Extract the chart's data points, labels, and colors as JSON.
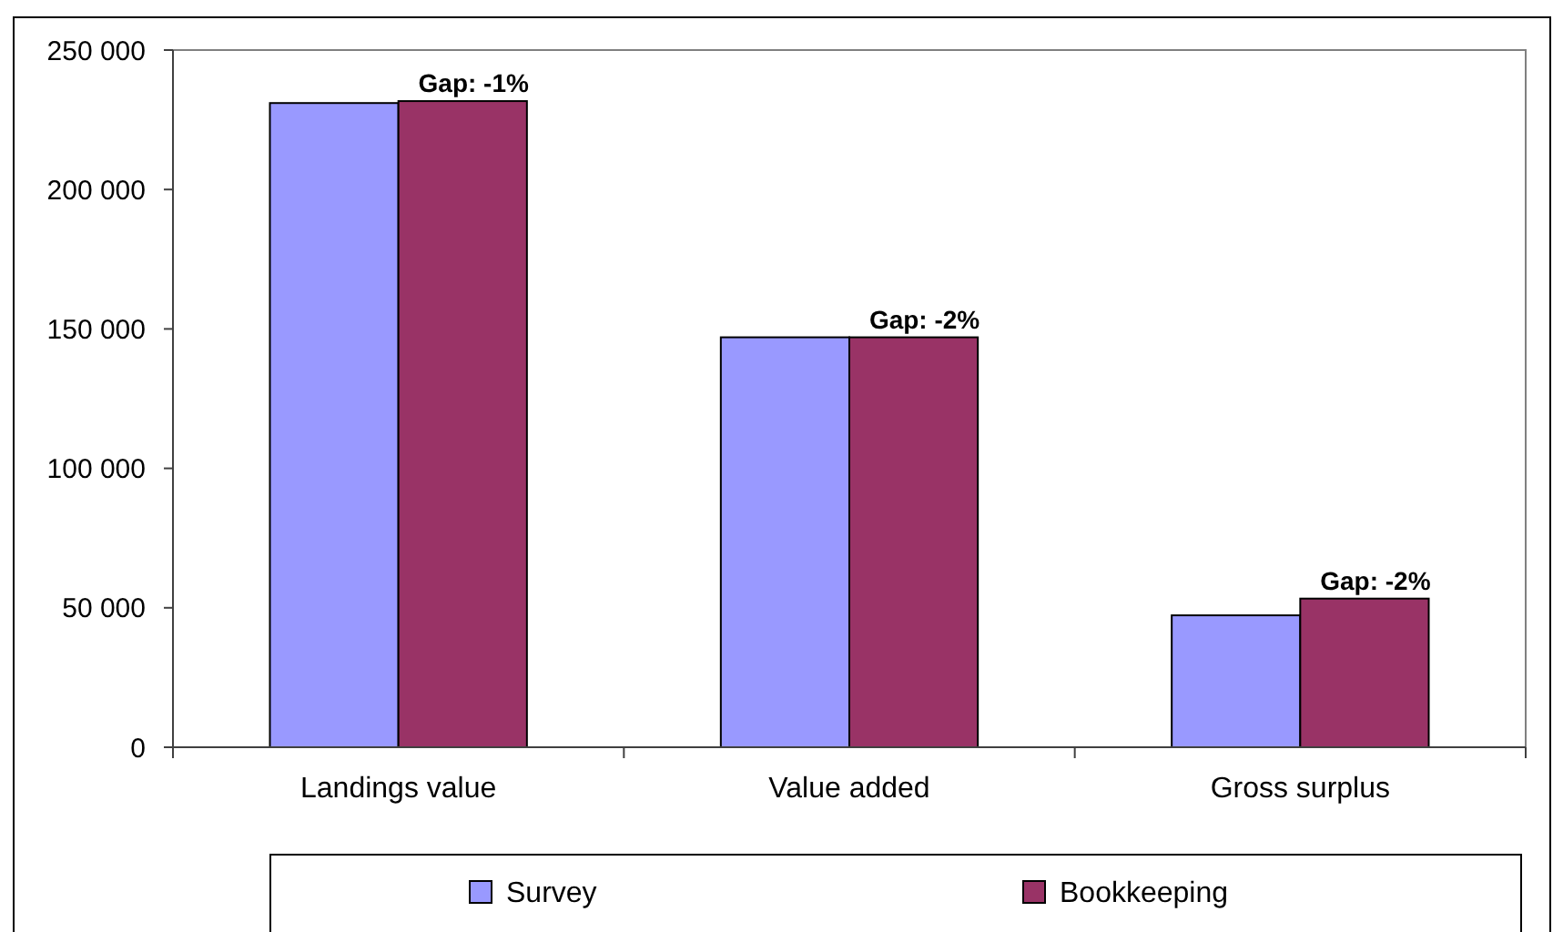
{
  "chart_data": {
    "type": "bar",
    "categories": [
      "Landings value",
      "Value added",
      "Gross surplus"
    ],
    "series": [
      {
        "name": "Survey",
        "color": "#9999ff",
        "values": [
          231000,
          147000,
          47300
        ]
      },
      {
        "name": "Bookkeeping",
        "color": "#993366",
        "values": [
          231700,
          147000,
          53300
        ]
      }
    ],
    "ylim": [
      0,
      250000
    ],
    "yticks": [
      {
        "value": 0,
        "label": "0"
      },
      {
        "value": 50000,
        "label": "50 000"
      },
      {
        "value": 100000,
        "label": "100 000"
      },
      {
        "value": 150000,
        "label": "150 000"
      },
      {
        "value": 200000,
        "label": "200 000"
      },
      {
        "value": 250000,
        "label": "250 000"
      }
    ],
    "legend": "bottom",
    "annotations": [
      {
        "text": "Gap: -1%",
        "x": "Landings value",
        "y": 231700
      },
      {
        "text": "Gap: -2%",
        "x": "Value added",
        "y": 147000
      },
      {
        "text": "Gap: -2%",
        "x": "Gross surplus",
        "y": 53300
      }
    ]
  }
}
